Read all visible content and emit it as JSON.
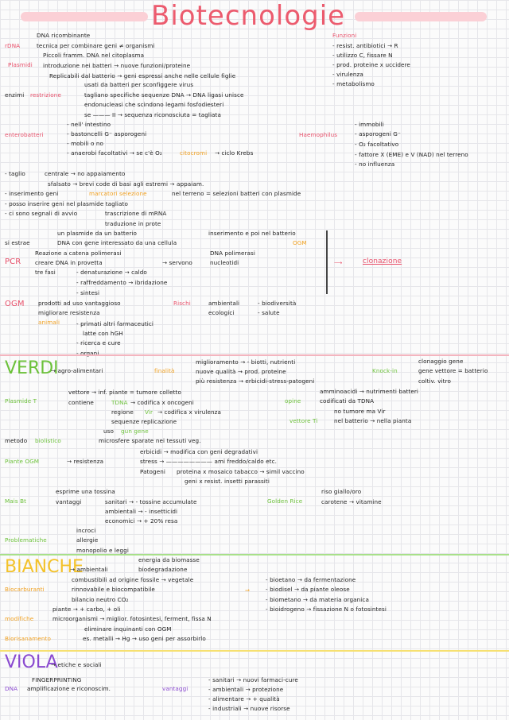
{
  "title": "Biotecnologie",
  "top": {
    "rdna": "rDNA",
    "dna_ric": "DNA ricombinante",
    "tecnica": "tecnica per combinare geni ≠ organismi",
    "piccoli": "Piccoli framm. DNA nel citoplasma",
    "plasmidi": "Plasmidi",
    "introduzione": "introduzione nei batteri → nuove funzioni/proteine",
    "replicabili": "Replicabili dal batterio → geni espressi anche nelle cellule figlie",
    "usati": "usati da batteri per sconfiggere virus",
    "enzimi": "enzimi",
    "restrizione": "restrizione",
    "tagliano": "tagliano specifiche sequenze DNA → DNA ligasi unisce",
    "endonucleasi": "endonucleasi che scindono legami fosfodiesteri",
    "se": "se ——— II → sequenza riconosciuta = tagliata",
    "funzioni": "Funzioni",
    "resist": "- resist. antibiotici → R",
    "utilizzo": "- utilizzo C, fissare N",
    "prod_prot": "- prod. proteine x uccidere",
    "virulenza": "- virulenza",
    "metabolismo": "- metabolismo",
    "enterobatteri": "enterobatteri",
    "intestino": "- nell' intestino",
    "bastoncelli": "- bastoncelli G⁻ asporogeni",
    "mobili": "- mobili o no",
    "anaerobi": "- anaerobi facoltativi → se c'è O₂",
    "citocromi": "citocromi",
    "ciclo": "→ ciclo Krebs",
    "haemophilus": "Haemophilus",
    "immobili": "- immobili",
    "asporogeni": "- asporogeni G⁻",
    "o2_fac": "- O₂ facoltativo",
    "fattore": "- fattore X (EME) e V (NAD) nel terreno",
    "no_infl": "- no influenza",
    "taglio": "- taglio",
    "centrale": "centrale → no appaiamento",
    "sfalsato": "sfalsato → brevi code di basi agli estremi → appaiam.",
    "inserimento": "- inserimento geni",
    "marcatori": "marcatori selezione",
    "terreno": "nel terreno = selezioni batteri con plasmide",
    "posso": "- posso inserire geni nel plasmide tagliato",
    "segnali": "- ci sono segnali di avvio",
    "trascrizione": "trascrizione di mRNA",
    "traduzione": "traduzione in prote",
    "un_plasmide": "un plasmide da un batterio",
    "inserimento2": "inserimento e poi nel batterio",
    "si_estrae": "si estrae",
    "dna_gene": "DNA con gene interessato da una cellula",
    "ogm1": "OGM",
    "pcr": "PCR",
    "reazione": "Reazione a catena polimerasi",
    "creare": "creare DNA in provetta",
    "dna_pol": "DNA polimerasi",
    "servono": "→ servono",
    "nucleotidi": "nucleotidi",
    "tre_fasi": "tre fasi",
    "denaturazione": "- denaturazione → caldo",
    "raffreddamento": "- raffreddamento → ibridazione",
    "sintesi": "- sintesi",
    "clonazione": "clonazione",
    "ogm2": "OGM",
    "prodotti": "prodotti ad uso vantaggioso",
    "migliorare": "migliorare resistenza",
    "animali": "animali",
    "animali_list": [
      "- primati altri farmaceutici",
      "latte con hGH",
      "- ricerca e cure",
      "- organi"
    ],
    "rischi": "Rischi",
    "ambientali": "ambientali",
    "ecologici": "ecologici",
    "biodiversita": "- biodiversità",
    "salute": "- salute"
  },
  "verdi": {
    "label": "VERDI",
    "agro": "→ agro-alimentari",
    "finalita": "finalità",
    "miglioramento": "miglioramento → - biotti, nutrienti",
    "nuove_qual": "nuove qualità → prod. proteine",
    "piu_res": "più resistenza → erbicidi-stress-patogeni",
    "knockin": "Knock-in",
    "clonaggio": "clonaggio gene",
    "gene_vett": "gene vettore = batterio",
    "coltiv": "coltiv. vitro",
    "plasmide_t": "Plasmide T",
    "vettore": "vettore → inf. piante = tumore colletto",
    "contiene": "contiene",
    "tdna": "TDNA",
    "codifica": "→ codifica x oncogeni",
    "regione": "regione",
    "vir": "Vir",
    "codifica_vir": "→ codifica x virulenza",
    "sequenze": "sequenze replicazione",
    "opine": "opine",
    "amminoacidi": "amminoacidi → nutrimenti batteri",
    "codificati": "codificati da TDNA",
    "vettore_ti": "vettore Ti",
    "no_tumore": "no tumore ma Vir",
    "nel_batt": "nel batterio → nella pianta",
    "uso": "uso",
    "gun": "gun gene",
    "metodo": "metodo",
    "biolistico": "biolistico",
    "microsfere": "microsfere sparate nei tessuti veg.",
    "piante_ogm": "Piante OGM",
    "resistenza": "→ resistenza",
    "erbicidi": "erbicidi → modifica con geni degradativi",
    "stress": "stress → ———————— ami freddo/caldo etc.",
    "patogeni": "Patogeni",
    "proteina": "proteina x mosaico tabacco → simil vaccino",
    "geni_res": "geni x resist. insetti parassiti",
    "mais_bt": "Mais Bt",
    "esprime": "esprime una tossina",
    "vantaggi": "vantaggi",
    "sanitari": "sanitari → - tossine accumulate",
    "ambientali": "ambientali → - insetticidi",
    "economici": "economici → + 20% resa",
    "golden": "Golden Rice",
    "riso": "riso giallo/oro",
    "carotene": "carotene → vitamine",
    "problematiche": "Problematiche",
    "incroci": "incroci",
    "allergie": "allergie",
    "monopolio": "monopolio e leggi"
  },
  "bianche": {
    "label": "BIANCHE",
    "ambientali": "→ ambientali",
    "energia": "energia da biomasse",
    "biodegradazione": "biodegradazione",
    "biocarburanti": "Biocarburanti",
    "combustibili": "combustibili ad origine fossile → vegetale",
    "rinnovabile": "rinnovabile e biocompatibile",
    "bilancio": "bilancio neutro CO₂",
    "bioetano": "- bioetano → da fermentazione",
    "biodisel": "- biodisel → da piante oleose",
    "biometano": "- biometano → da materia organica",
    "bioidrogeno": "- bioidrogeno → fissazione N o fotosintesi",
    "modifiche": "modifiche",
    "piante": "piante → + carbo, + oli",
    "microrg": "microorganismi → miglior. fotosintesi, ferment, fissa N",
    "eliminare": "eliminare inquinanti con OGM",
    "biorisanamento": "Biorisanamento",
    "es_metalli": "es. metalli → Hg → uso geni per assorbirlo"
  },
  "viola": {
    "label": "VIOLA",
    "etiche": "→ etiche e sociali",
    "fingerprinting": "FINGERPRINTING",
    "dna": "DNA",
    "amplificazione": "amplificazione e riconoscim.",
    "vantaggi": "vantaggi",
    "list": [
      "- sanitari → nuovi farmaci-cure",
      "- ambientali → protezione",
      "- alimentare → + qualità",
      "- industriali → nuove risorse"
    ]
  }
}
